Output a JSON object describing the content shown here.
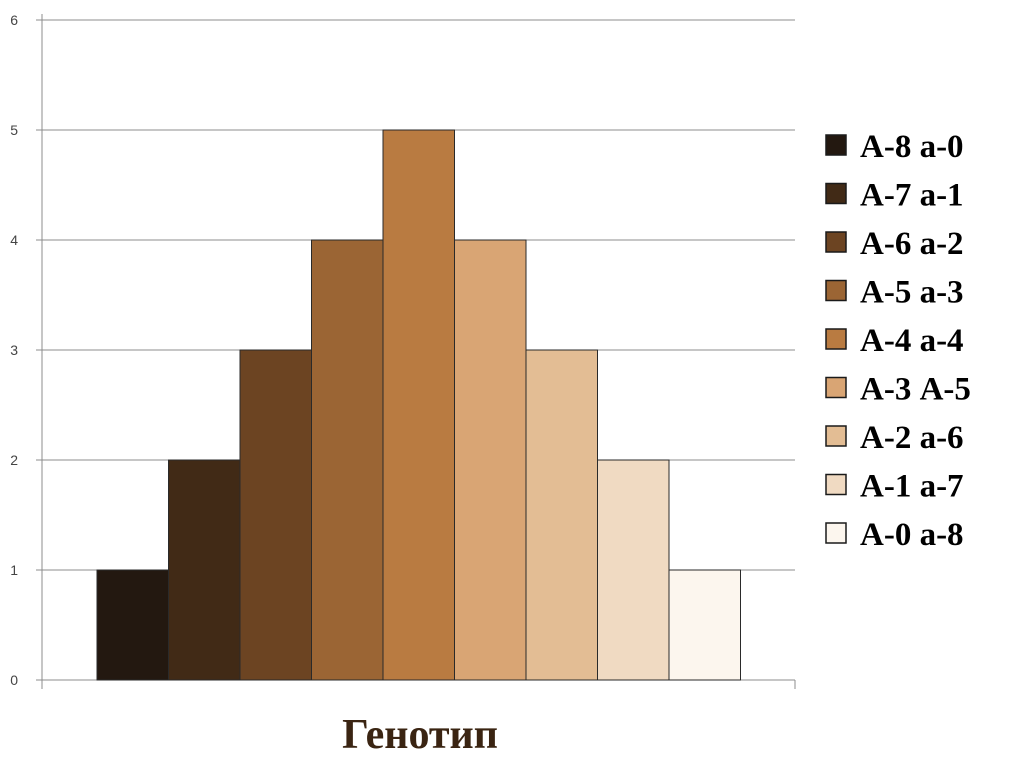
{
  "chart_data": {
    "type": "bar",
    "xlabel": "Генотип",
    "ylabel": "",
    "ylim": [
      0,
      6
    ],
    "yticks": [
      0,
      1,
      2,
      3,
      4,
      5,
      6
    ],
    "grid": true,
    "legend_position": "right",
    "series": [
      {
        "name": "А-8 а-0",
        "values": [
          1
        ],
        "color": "#231810"
      },
      {
        "name": "А-7 а-1",
        "values": [
          2
        ],
        "color": "#412a16"
      },
      {
        "name": "А-6 а-2",
        "values": [
          3
        ],
        "color": "#6c4422"
      },
      {
        "name": "А-5 а-3",
        "values": [
          4
        ],
        "color": "#9b6534"
      },
      {
        "name": "А-4 а-4",
        "values": [
          5
        ],
        "color": "#b97b41"
      },
      {
        "name": "А-3 А-5",
        "values": [
          4
        ],
        "color": "#d9a574"
      },
      {
        "name": "А-2 а-6",
        "values": [
          3
        ],
        "color": "#e3bd94"
      },
      {
        "name": "А-1 а-7",
        "values": [
          2
        ],
        "color": "#f0dac2"
      },
      {
        "name": "А-0 а-8",
        "values": [
          1
        ],
        "color": "#fcf6ee"
      }
    ]
  }
}
